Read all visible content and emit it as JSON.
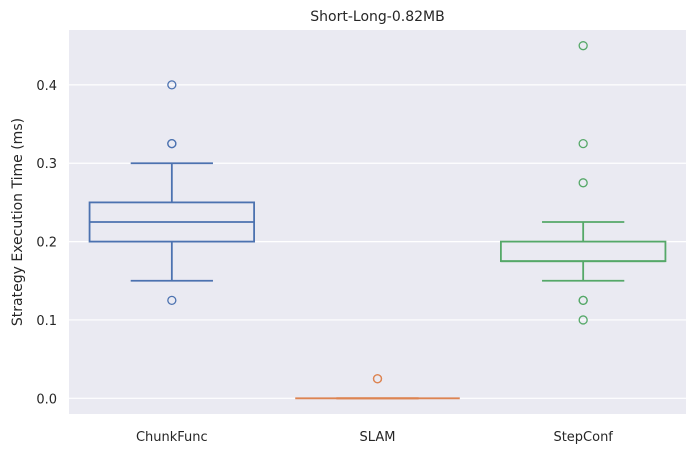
{
  "chart_data": {
    "type": "box",
    "title": "Short-Long-0.82MB",
    "xlabel": "",
    "ylabel": "Strategy Execution Time (ms)",
    "categories": [
      "ChunkFunc",
      "SLAM",
      "StepConf"
    ],
    "ylim": [
      -0.02,
      0.47
    ],
    "yticks": [
      0.0,
      0.1,
      0.2,
      0.3,
      0.4
    ],
    "ytick_labels": [
      "0.0",
      "0.1",
      "0.2",
      "0.3",
      "0.4"
    ],
    "grid": true,
    "legend": "none",
    "colors": {
      "background": "#eaeaf2",
      "grid": "#ffffff"
    },
    "boxes": [
      {
        "category": "ChunkFunc",
        "color": "#4c72b0",
        "whisker_low": 0.15,
        "q1": 0.2,
        "median": 0.225,
        "q3": 0.25,
        "whisker_high": 0.3,
        "outliers": [
          0.125,
          0.325,
          0.325,
          0.4
        ]
      },
      {
        "category": "SLAM",
        "color": "#dd8452",
        "whisker_low": 0.0,
        "q1": 0.0,
        "median": 0.0,
        "q3": 0.0,
        "whisker_high": 0.0,
        "outliers": [
          0.025,
          0.025
        ]
      },
      {
        "category": "StepConf",
        "color": "#55a868",
        "whisker_low": 0.15,
        "q1": 0.175,
        "median": 0.175,
        "q3": 0.2,
        "whisker_high": 0.225,
        "outliers": [
          0.1,
          0.125,
          0.125,
          0.275,
          0.325,
          0.45
        ]
      }
    ]
  }
}
